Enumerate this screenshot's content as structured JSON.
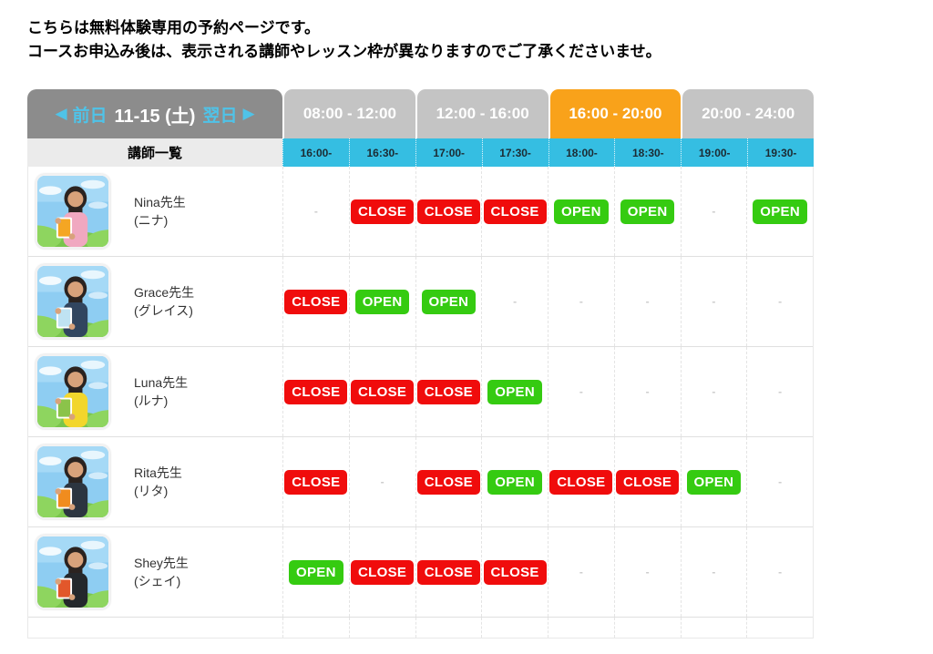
{
  "notice": {
    "line1": "こちらは無料体験専用の予約ページです。",
    "line2": "コースお申込み後は、表示される講師やレッスン枠が異なりますのでご了承くださいませ。"
  },
  "date_nav": {
    "prev_arrow": "◀",
    "prev_label": "前日",
    "current_date": "11-15 (土)",
    "next_label": "翌日",
    "next_arrow": "▶"
  },
  "tabs": [
    {
      "label": "08:00 - 12:00",
      "active": false
    },
    {
      "label": "12:00 - 16:00",
      "active": false
    },
    {
      "label": "16:00 - 20:00",
      "active": true
    },
    {
      "label": "20:00 - 24:00",
      "active": false
    }
  ],
  "schedule": {
    "teacher_col_header": "講師一覧",
    "slot_headers": [
      "16:00-",
      "16:30-",
      "17:00-",
      "17:30-",
      "18:00-",
      "18:30-",
      "19:00-",
      "19:30-"
    ],
    "open_label": "OPEN",
    "close_label": "CLOSE",
    "empty_label": "-",
    "teachers": [
      {
        "name": "Nina先生",
        "kana": "(ニナ)",
        "shirt_color": "#f0a8c0",
        "book_color": "#f5a623",
        "slots": [
          "-",
          "CLOSE",
          "CLOSE",
          "CLOSE",
          "OPEN",
          "OPEN",
          "-",
          "OPEN"
        ]
      },
      {
        "name": "Grace先生",
        "kana": "(グレイス)",
        "shirt_color": "#31455f",
        "book_color": "#bfe3f2",
        "slots": [
          "CLOSE",
          "OPEN",
          "OPEN",
          "-",
          "-",
          "-",
          "-",
          "-"
        ]
      },
      {
        "name": "Luna先生",
        "kana": "(ルナ)",
        "shirt_color": "#f2d62c",
        "book_color": "#8bc34a",
        "slots": [
          "CLOSE",
          "CLOSE",
          "CLOSE",
          "OPEN",
          "-",
          "-",
          "-",
          "-"
        ]
      },
      {
        "name": "Rita先生",
        "kana": "(リタ)",
        "shirt_color": "#2c3540",
        "book_color": "#f08c1e",
        "slots": [
          "CLOSE",
          "-",
          "CLOSE",
          "OPEN",
          "CLOSE",
          "CLOSE",
          "OPEN",
          "-"
        ]
      },
      {
        "name": "Shey先生",
        "kana": "(シェイ)",
        "shirt_color": "#24282c",
        "book_color": "#e2572b",
        "slots": [
          "OPEN",
          "CLOSE",
          "CLOSE",
          "CLOSE",
          "-",
          "-",
          "-",
          "-"
        ]
      }
    ]
  },
  "colors": {
    "open": "#35cb11",
    "close": "#f00c0c",
    "tab_active": "#f9a21a",
    "tab_inactive": "#c4c4c4",
    "slot_header": "#35bee2",
    "nav_bg": "#8c8c8c",
    "nav_accent": "#4fc3e8"
  }
}
